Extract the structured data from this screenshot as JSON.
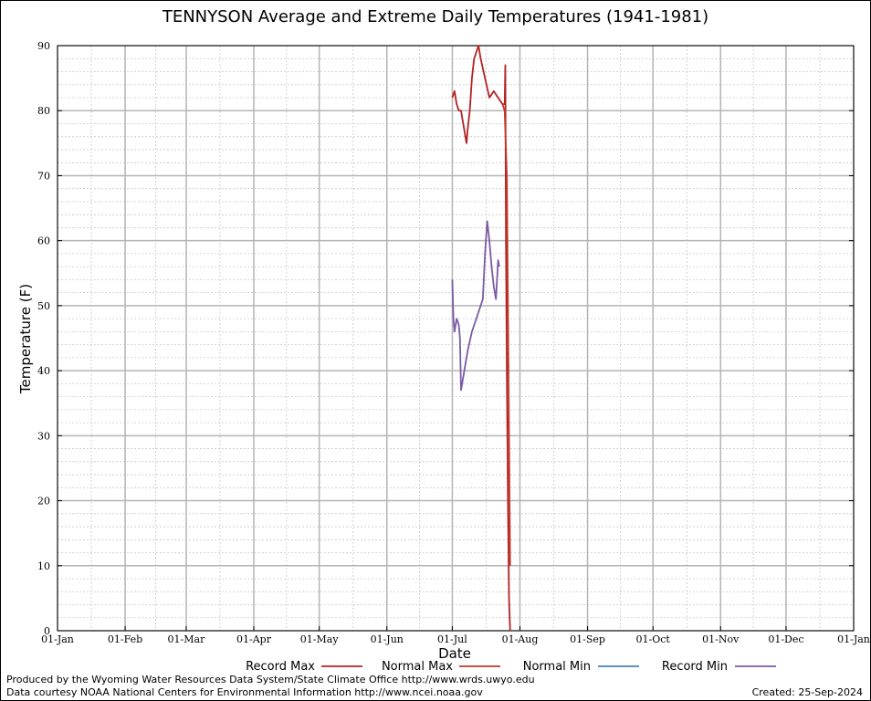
{
  "chart_data": {
    "type": "line",
    "title": "TENNYSON Average and Extreme Daily Temperatures (1941-1981)",
    "xlabel": "Date",
    "ylabel": "Temperature (F)",
    "ylim": [
      0,
      90
    ],
    "yticks": [
      "0",
      "10",
      "20",
      "30",
      "40",
      "50",
      "60",
      "70",
      "80",
      "90"
    ],
    "xticks": [
      "01-Jan",
      "01-Feb",
      "01-Mar",
      "01-Apr",
      "01-May",
      "01-Jun",
      "01-Jul",
      "01-Aug",
      "01-Sep",
      "01-Oct",
      "01-Nov",
      "01-Dec",
      "01-Jan"
    ],
    "xtick_days": [
      0,
      31,
      59,
      90,
      120,
      151,
      181,
      212,
      243,
      273,
      304,
      334,
      365
    ],
    "grid": true,
    "legend_placement": "bottom",
    "series": [
      {
        "name": "Record Max",
        "color": "#b22222",
        "points": [
          [
            181,
            82
          ],
          [
            182,
            83
          ],
          [
            183,
            81
          ],
          [
            184,
            80
          ],
          [
            185,
            80
          ],
          [
            186,
            78
          ],
          [
            187,
            76
          ],
          [
            187.5,
            75
          ],
          [
            188,
            77
          ],
          [
            189,
            80
          ],
          [
            190,
            85
          ],
          [
            191,
            88
          ],
          [
            193,
            90
          ],
          [
            194,
            88
          ],
          [
            196,
            85
          ],
          [
            198,
            82
          ],
          [
            200,
            83
          ],
          [
            202,
            82
          ],
          [
            204,
            81
          ],
          [
            205,
            81
          ],
          [
            205.3,
            87
          ],
          [
            205.6,
            60
          ],
          [
            206,
            40
          ],
          [
            206.5,
            20
          ],
          [
            207,
            5
          ],
          [
            207.5,
            0
          ]
        ]
      },
      {
        "name": "Normal Max",
        "color": "#c0392b",
        "points": [
          [
            204,
            81
          ],
          [
            205,
            80
          ],
          [
            206,
            70
          ],
          [
            206.5,
            50
          ],
          [
            207,
            30
          ],
          [
            207.5,
            10
          ]
        ]
      },
      {
        "name": "Normal Min",
        "color": "#4682b4",
        "points": []
      },
      {
        "name": "Record Min",
        "color": "#7b5aa6",
        "points": [
          [
            181,
            54
          ],
          [
            181.5,
            48
          ],
          [
            182,
            46
          ],
          [
            183,
            48
          ],
          [
            184,
            47
          ],
          [
            184.5,
            45
          ],
          [
            185,
            37
          ],
          [
            186,
            39
          ],
          [
            188,
            43
          ],
          [
            190,
            46
          ],
          [
            192,
            48
          ],
          [
            194,
            50
          ],
          [
            195,
            51
          ],
          [
            196,
            58
          ],
          [
            197,
            63
          ],
          [
            198,
            60
          ],
          [
            199,
            56
          ],
          [
            200,
            53
          ],
          [
            201,
            51
          ],
          [
            201.5,
            54
          ],
          [
            202,
            57
          ],
          [
            202.5,
            56
          ]
        ]
      }
    ]
  },
  "footer": {
    "left_line1": "Produced by the Wyoming Water Resources Data System/State Climate Office http://www.wrds.uwyo.edu",
    "left_line2": "Data courtesy NOAA National Centers for Environmental Information http://www.ncei.noaa.gov",
    "right": "Created:  25-Sep-2024"
  }
}
